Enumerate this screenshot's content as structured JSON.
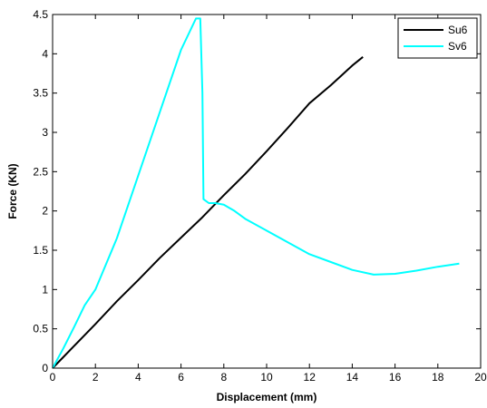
{
  "chart_data": {
    "type": "line",
    "title": "",
    "xlabel": "Displacement (mm)",
    "ylabel": "Force (KN)",
    "xlim": [
      0,
      20
    ],
    "ylim": [
      0,
      4.5
    ],
    "xticks": [
      0,
      2,
      4,
      6,
      8,
      10,
      12,
      14,
      16,
      18,
      20
    ],
    "yticks": [
      0,
      0.5,
      1,
      1.5,
      2,
      2.5,
      3,
      3.5,
      4,
      4.5
    ],
    "xtick_labels": [
      "0",
      "2",
      "4",
      "6",
      "8",
      "10",
      "12",
      "14",
      "16",
      "18",
      "20"
    ],
    "ytick_labels": [
      "0",
      "0.5",
      "1",
      "1.5",
      "2",
      "2.5",
      "3",
      "3.5",
      "4",
      "4.5"
    ],
    "grid": false,
    "legend_position": "top-right",
    "series": [
      {
        "name": "Su6",
        "color": "#000000",
        "x": [
          0,
          0.5,
          1,
          2,
          3,
          4,
          5,
          6,
          7,
          8,
          9,
          10,
          11,
          12,
          13,
          14,
          14.5
        ],
        "y": [
          0,
          0.14,
          0.28,
          0.56,
          0.85,
          1.12,
          1.4,
          1.66,
          1.92,
          2.2,
          2.47,
          2.76,
          3.06,
          3.37,
          3.6,
          3.85,
          3.96
        ]
      },
      {
        "name": "Sv6",
        "color": "#00FFFF",
        "x": [
          0,
          0.5,
          1,
          1.5,
          2,
          3,
          4,
          5,
          6,
          6.7,
          6.8,
          6.9,
          7.0,
          7.05,
          7.3,
          7.6,
          8,
          8.5,
          9,
          10,
          11,
          12,
          13,
          14,
          15,
          16,
          17,
          18,
          19
        ],
        "y": [
          0,
          0.25,
          0.52,
          0.8,
          1.0,
          1.65,
          2.45,
          3.25,
          4.05,
          4.45,
          4.45,
          4.45,
          3.5,
          2.15,
          2.1,
          2.1,
          2.08,
          2.0,
          1.9,
          1.75,
          1.6,
          1.45,
          1.35,
          1.25,
          1.19,
          1.2,
          1.24,
          1.29,
          1.33
        ]
      }
    ]
  }
}
